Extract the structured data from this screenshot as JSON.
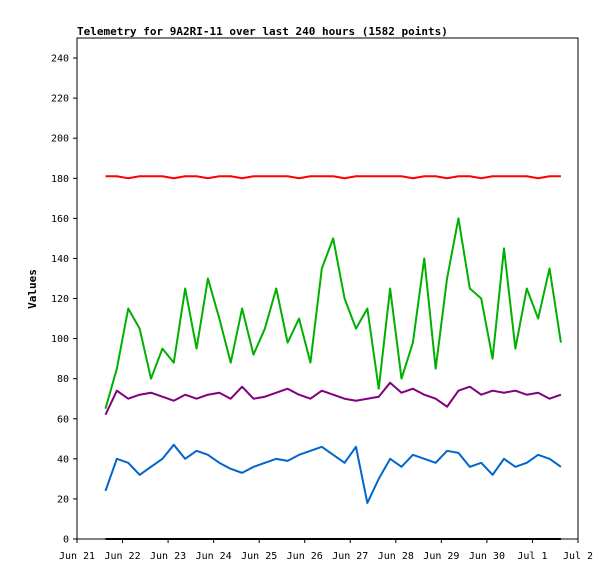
{
  "chart_data": {
    "type": "line",
    "title": "Telemetry for 9A2RI-11 over last 240 hours (1582 points)",
    "xlabel": "",
    "ylabel": "Values",
    "ylim": [
      0,
      250
    ],
    "xlim": [
      "2020-06-21",
      "2020-07-02"
    ],
    "x_ticks": [
      "Jun 21",
      "Jun 22",
      "Jun 23",
      "Jun 24",
      "Jun 25",
      "Jun 26",
      "Jun 27",
      "Jun 28",
      "Jun 29",
      "Jun 30",
      "Jul 1",
      "Jul 2"
    ],
    "y_ticks": [
      "0",
      "20",
      "40",
      "60",
      "80",
      "100",
      "120",
      "140",
      "160",
      "180",
      "200",
      "220",
      "240"
    ],
    "grid": false,
    "legend": "none",
    "colors": {
      "red": "#ff0000",
      "green": "#00b000",
      "purple": "#800080",
      "blue": "#0066cc",
      "black": "#000000"
    },
    "x": [
      "Jun 21 15:00",
      "Jun 21 21:00",
      "Jun 22 03:00",
      "Jun 22 09:00",
      "Jun 22 15:00",
      "Jun 22 21:00",
      "Jun 23 03:00",
      "Jun 23 09:00",
      "Jun 23 15:00",
      "Jun 23 21:00",
      "Jun 24 03:00",
      "Jun 24 09:00",
      "Jun 24 15:00",
      "Jun 24 21:00",
      "Jun 25 03:00",
      "Jun 25 09:00",
      "Jun 25 15:00",
      "Jun 25 21:00",
      "Jun 26 03:00",
      "Jun 26 09:00",
      "Jun 26 15:00",
      "Jun 26 21:00",
      "Jun 27 03:00",
      "Jun 27 09:00",
      "Jun 27 15:00",
      "Jun 27 21:00",
      "Jun 28 03:00",
      "Jun 28 09:00",
      "Jun 28 15:00",
      "Jun 28 21:00",
      "Jun 29 03:00",
      "Jun 29 09:00",
      "Jun 29 15:00",
      "Jun 29 21:00",
      "Jun 30 03:00",
      "Jun 30 09:00",
      "Jun 30 15:00",
      "Jun 30 21:00",
      "Jul 1 03:00",
      "Jul 1 09:00",
      "Jul 1 15:00"
    ],
    "series": [
      {
        "color": "red",
        "values": [
          181,
          181,
          180,
          181,
          181,
          181,
          180,
          181,
          181,
          180,
          181,
          181,
          180,
          181,
          181,
          181,
          181,
          180,
          181,
          181,
          181,
          180,
          181,
          181,
          181,
          181,
          181,
          180,
          181,
          181,
          180,
          181,
          181,
          180,
          181,
          181,
          181,
          181,
          180,
          181,
          181
        ]
      },
      {
        "color": "green",
        "values": [
          65,
          85,
          115,
          105,
          80,
          95,
          88,
          125,
          95,
          130,
          110,
          88,
          115,
          92,
          105,
          125,
          98,
          110,
          88,
          135,
          150,
          120,
          105,
          115,
          75,
          125,
          80,
          98,
          140,
          85,
          130,
          160,
          125,
          120,
          90,
          145,
          95,
          125,
          110,
          135,
          98
        ]
      },
      {
        "color": "purple",
        "values": [
          62,
          74,
          70,
          72,
          73,
          71,
          69,
          72,
          70,
          72,
          73,
          70,
          76,
          70,
          71,
          73,
          75,
          72,
          70,
          74,
          72,
          70,
          69,
          70,
          71,
          78,
          73,
          75,
          72,
          70,
          66,
          74,
          76,
          72,
          74,
          73,
          74,
          72,
          73,
          70,
          72
        ]
      },
      {
        "color": "blue",
        "values": [
          24,
          40,
          38,
          32,
          36,
          40,
          47,
          40,
          44,
          42,
          38,
          35,
          33,
          36,
          38,
          40,
          39,
          42,
          44,
          46,
          42,
          38,
          46,
          18,
          30,
          40,
          36,
          42,
          40,
          38,
          44,
          43,
          36,
          38,
          32,
          40,
          36,
          38,
          42,
          40,
          36
        ]
      },
      {
        "color": "black",
        "values": [
          0,
          0,
          0,
          0,
          0,
          0,
          0,
          0,
          0,
          0,
          0,
          0,
          0,
          0,
          0,
          0,
          0,
          0,
          0,
          0,
          0,
          0,
          0,
          0,
          0,
          0,
          0,
          0,
          0,
          0,
          0,
          0,
          0,
          0,
          0,
          0,
          0,
          0,
          0,
          0,
          0
        ]
      }
    ]
  }
}
